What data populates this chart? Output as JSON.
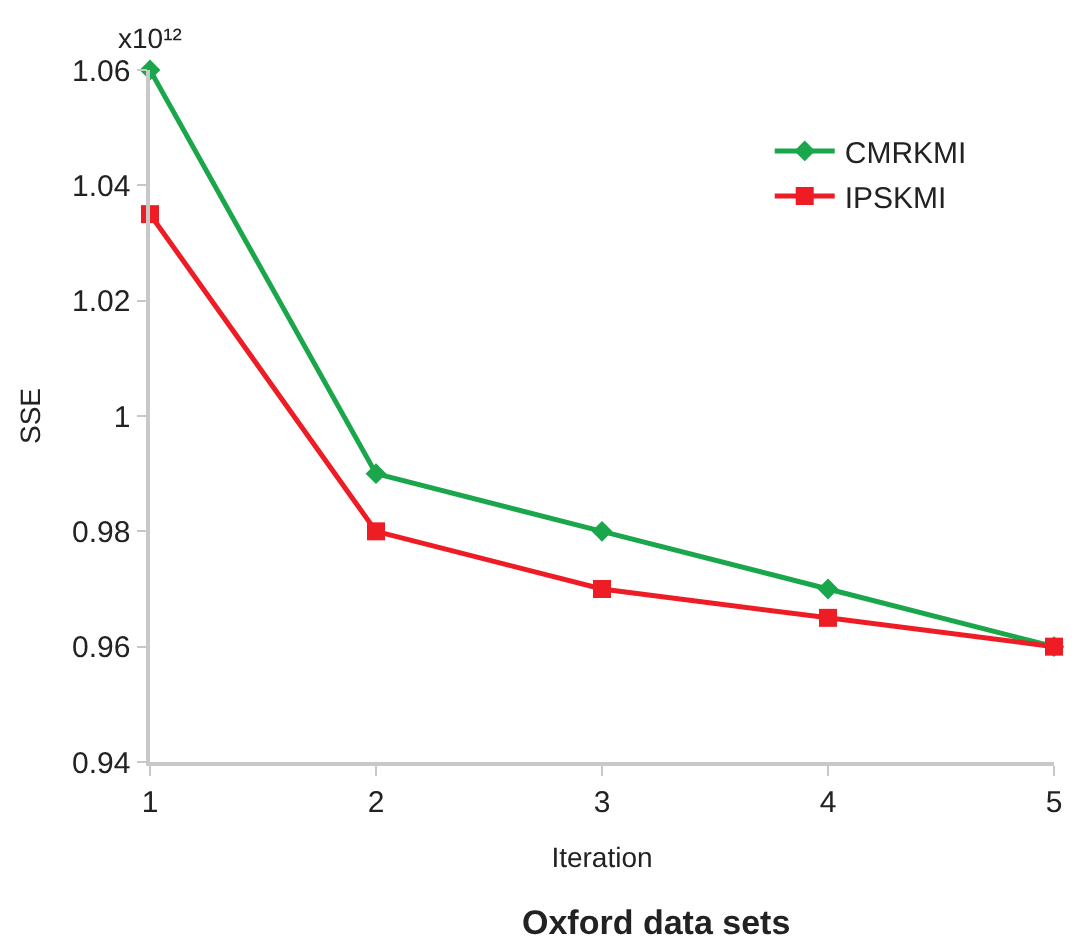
{
  "chart_data": {
    "type": "line",
    "title": "Oxford data sets",
    "xlabel": "Iteration",
    "ylabel": "SSE",
    "annotations": [
      "x10¹²"
    ],
    "x": [
      1,
      2,
      3,
      4,
      5
    ],
    "series": [
      {
        "name": "CMRKMI",
        "color": "#1aa64a",
        "marker": "diamond",
        "values": [
          1.06,
          0.99,
          0.98,
          0.97,
          0.96
        ]
      },
      {
        "name": "IPSKMI",
        "color": "#ee1c25",
        "marker": "square",
        "values": [
          1.035,
          0.98,
          0.97,
          0.965,
          0.96
        ]
      }
    ],
    "xlim": [
      1,
      5
    ],
    "xticks": [
      1,
      2,
      3,
      4,
      5
    ],
    "ylim": [
      0.94,
      1.06
    ],
    "yticks": [
      0.94,
      0.96,
      0.98,
      1,
      1.02,
      1.04,
      1.06
    ],
    "legend": "top right",
    "line_style": "solid"
  }
}
